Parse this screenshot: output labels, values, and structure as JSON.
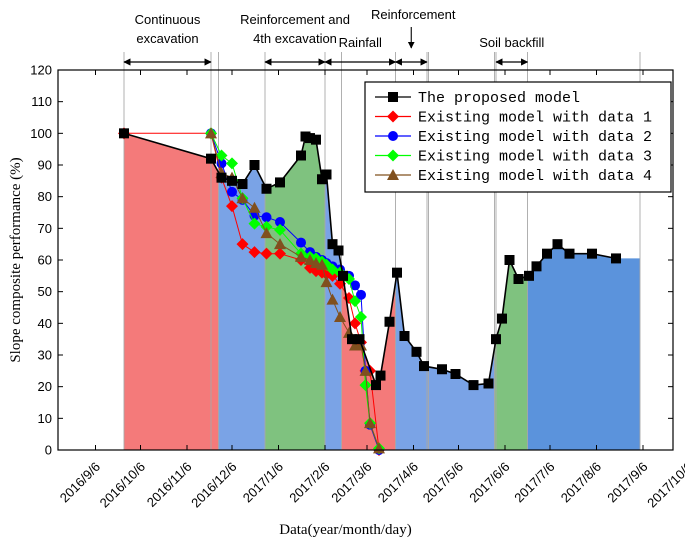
{
  "chart_data": {
    "type": "line",
    "title": "",
    "xlabel": "Data(year/month/day)",
    "ylabel": "Slope composite performance (%)",
    "ylim": [
      0,
      120
    ],
    "yticks": [
      0,
      10,
      20,
      30,
      40,
      50,
      60,
      70,
      80,
      90,
      100,
      110,
      120
    ],
    "xlim_days": [
      -25,
      385
    ],
    "xticks": [
      {
        "label": "2016/9/6",
        "day": 0
      },
      {
        "label": "2016/10/6",
        "day": 30
      },
      {
        "label": "2016/11/6",
        "day": 61
      },
      {
        "label": "2016/12/6",
        "day": 91
      },
      {
        "label": "2017/1/6",
        "day": 122
      },
      {
        "label": "2017/2/6",
        "day": 153
      },
      {
        "label": "2017/3/6",
        "day": 181
      },
      {
        "label": "2017/4/6",
        "day": 212
      },
      {
        "label": "2017/5/6",
        "day": 242
      },
      {
        "label": "2017/6/6",
        "day": 273
      },
      {
        "label": "2017/7/6",
        "day": 303
      },
      {
        "label": "2017/8/6",
        "day": 334
      },
      {
        "label": "2017/9/6",
        "day": 365
      },
      {
        "label": "2017/10/6",
        "day": 395
      }
    ],
    "phases": [
      {
        "label": "Continuous excavation",
        "lines": [
          "Continuous",
          "excavation"
        ],
        "start": 19,
        "end": 77
      },
      {
        "label": "Reinforcement and 4th excavation",
        "lines": [
          "Reinforcement and",
          "4th excavation"
        ],
        "start": 113,
        "end": 153
      },
      {
        "label": "Rainfall",
        "lines": [
          "Rainfall"
        ],
        "start": 153,
        "end": 200
      },
      {
        "label": "Reinforcement",
        "lines": [
          "Reinforcement"
        ],
        "start": 200,
        "end": 221
      },
      {
        "label": "Soil backfill",
        "lines": [
          "Soil backfill"
        ],
        "start": 267,
        "end": 288
      }
    ],
    "regions": [
      {
        "start": 19,
        "end": 82,
        "color": "#f47a7a"
      },
      {
        "start": 82,
        "end": 113,
        "color": "#7aa3e6"
      },
      {
        "start": 113,
        "end": 153,
        "color": "#7fc27f"
      },
      {
        "start": 153,
        "end": 164,
        "color": "#7aa3e6"
      },
      {
        "start": 164,
        "end": 200,
        "color": "#f47a7a"
      },
      {
        "start": 200,
        "end": 222,
        "color": "#7aa3e6"
      },
      {
        "start": 222,
        "end": 266,
        "color": "#7aa3e6"
      },
      {
        "start": 266,
        "end": 288,
        "color": "#7fc27f"
      },
      {
        "start": 288,
        "end": 363,
        "color": "#5b93dc"
      }
    ],
    "series": [
      {
        "name": "The proposed model",
        "color": "#000000",
        "marker": "square",
        "x": [
          19,
          77,
          84,
          91,
          98,
          106,
          114,
          123,
          137,
          140,
          143,
          147,
          151,
          154,
          158,
          162,
          165,
          171,
          176,
          187,
          190,
          196,
          201,
          206,
          214,
          219,
          231,
          240,
          252,
          262,
          267,
          271,
          276,
          282,
          289,
          294,
          301,
          308,
          316,
          331,
          347
        ],
        "y": [
          100,
          92,
          86,
          85,
          84,
          90,
          82.5,
          84.5,
          93,
          99,
          98.5,
          98,
          85.5,
          87,
          65,
          63,
          55,
          35,
          35,
          20.5,
          23.5,
          40.5,
          56,
          36,
          31,
          26.5,
          25.5,
          24,
          20.5,
          21,
          35,
          41.5,
          60,
          54,
          55,
          58,
          62,
          65,
          62,
          62,
          60.5
        ]
      },
      {
        "name": "Existing model with data 1",
        "color": "#ff0000",
        "marker": "diamond",
        "x": [
          19,
          77,
          84,
          91,
          98,
          106,
          114,
          123,
          137,
          143,
          147,
          151,
          154,
          158,
          163,
          169,
          173,
          177,
          180,
          183,
          189
        ],
        "y": [
          100,
          100,
          86,
          77,
          65,
          62.5,
          62,
          62,
          60,
          57.5,
          56.5,
          56,
          55.5,
          55,
          52.5,
          48,
          40,
          34,
          25,
          25,
          0
        ]
      },
      {
        "name": "Existing model with data 2",
        "color": "#0000ff",
        "marker": "circle",
        "x": [
          77,
          84,
          91,
          98,
          106,
          114,
          123,
          137,
          143,
          147,
          151,
          154,
          158,
          163,
          169,
          173,
          177,
          180,
          183,
          189
        ],
        "y": [
          100,
          90.5,
          81.5,
          79,
          74,
          73.5,
          72,
          65.5,
          62.5,
          61,
          60,
          59,
          58,
          57,
          55,
          52,
          49,
          25,
          8,
          0
        ]
      },
      {
        "name": "Existing model with data 3",
        "color": "#00ff00",
        "marker": "diamond",
        "x": [
          77,
          84,
          91,
          98,
          106,
          114,
          123,
          137,
          143,
          147,
          151,
          154,
          158,
          163,
          169,
          173,
          177,
          180,
          183,
          189
        ],
        "y": [
          100,
          93,
          90.5,
          79.5,
          71.5,
          70.5,
          69.5,
          62,
          61,
          60.5,
          59.5,
          58.5,
          57,
          56,
          54,
          47,
          42,
          20.5,
          8.5,
          0.5
        ]
      },
      {
        "name": "Existing model with data 4",
        "color": "#80501e",
        "marker": "triangle",
        "x": [
          77,
          84,
          91,
          98,
          106,
          114,
          123,
          137,
          143,
          147,
          151,
          154,
          158,
          163,
          169,
          173,
          177,
          180,
          183,
          189
        ],
        "y": [
          100,
          87.5,
          86,
          79.5,
          76.5,
          68.5,
          65,
          61,
          60,
          59,
          58.5,
          53,
          47.5,
          42,
          37,
          33,
          33,
          25,
          8.5,
          0.5
        ]
      }
    ],
    "legend": "top-right"
  }
}
